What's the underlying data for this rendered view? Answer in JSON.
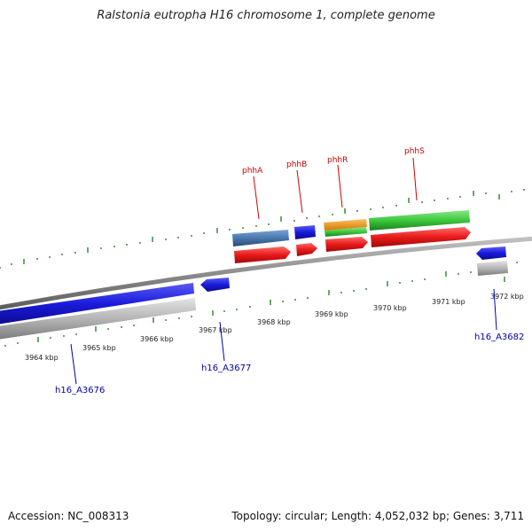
{
  "header": {
    "title": "Ralstonia eutropha H16 chromosome 1, complete genome"
  },
  "footer": {
    "accession": "Accession: NC_008313",
    "stats": "Topology: circular; Length: 4,052,032 bp; Genes: 3,711"
  },
  "colors": {
    "background": "#ffffff",
    "backbone": "#8c8c8c",
    "tick": "#1a7a1a",
    "gene_blue": "#1a1adc",
    "gene_red": "#e81a1a",
    "gene_green": "#3cc83c",
    "gene_orange": "#f09a1a",
    "gene_steelblue": "#4a78b0",
    "gene_grey": "#b4b4b4",
    "label_red": "#cc0000",
    "label_blue": "#0000aa"
  },
  "axis": {
    "kbp_labels": [
      "3964 kbp",
      "3965 kbp",
      "3966 kbp",
      "3967 kbp",
      "3968 kbp",
      "3969 kbp",
      "3970 kbp",
      "3971 kbp",
      "3972 kbp"
    ]
  },
  "gene_labels": {
    "phhA": "phhA",
    "phhB": "phhB",
    "phhR": "phhR",
    "phhS": "phhS",
    "h16_A3676": "h16_A3676",
    "h16_A3677": "h16_A3677",
    "h16_A3682": "h16_A3682"
  }
}
